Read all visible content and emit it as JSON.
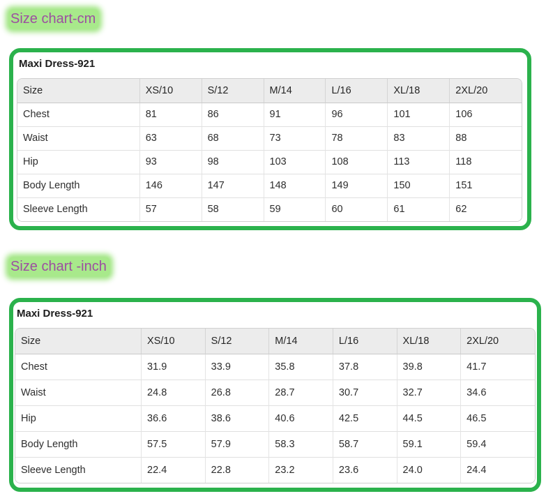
{
  "colors": {
    "accent_green": "#2bb24c",
    "highlight_green": "#a8e98b",
    "title_purple": "#9c4fa0",
    "header_gray": "#ececec"
  },
  "sections": [
    {
      "title": "Size chart-cm",
      "card_title": "Maxi Dress-921",
      "table": {
        "columns": [
          "Size",
          "XS/10",
          "S/12",
          "M/14",
          "L/16",
          "XL/18",
          "2XL/20"
        ],
        "rows": [
          {
            "label": "Chest",
            "values": [
              "81",
              "86",
              "91",
              "96",
              "101",
              "106"
            ]
          },
          {
            "label": "Waist",
            "values": [
              "63",
              "68",
              "73",
              "78",
              "83",
              "88"
            ]
          },
          {
            "label": "Hip",
            "values": [
              "93",
              "98",
              "103",
              "108",
              "113",
              "118"
            ]
          },
          {
            "label": "Body Length",
            "values": [
              "146",
              "147",
              "148",
              "149",
              "150",
              "151"
            ]
          },
          {
            "label": "Sleeve Length",
            "values": [
              "57",
              "58",
              "59",
              "60",
              "61",
              "62"
            ]
          }
        ]
      }
    },
    {
      "title": "Size chart -inch",
      "card_title": "Maxi Dress-921",
      "table": {
        "columns": [
          "Size",
          "XS/10",
          "S/12",
          "M/14",
          "L/16",
          "XL/18",
          "2XL/20"
        ],
        "rows": [
          {
            "label": "Chest",
            "values": [
              "31.9",
              "33.9",
              "35.8",
              "37.8",
              "39.8",
              "41.7"
            ]
          },
          {
            "label": "Waist",
            "values": [
              "24.8",
              "26.8",
              "28.7",
              "30.7",
              "32.7",
              "34.6"
            ]
          },
          {
            "label": "Hip",
            "values": [
              "36.6",
              "38.6",
              "40.6",
              "42.5",
              "44.5",
              "46.5"
            ]
          },
          {
            "label": "Body Length",
            "values": [
              "57.5",
              "57.9",
              "58.3",
              "58.7",
              "59.1",
              "59.4"
            ]
          },
          {
            "label": "Sleeve Length",
            "values": [
              "22.4",
              "22.8",
              "23.2",
              "23.6",
              "24.0",
              "24.4"
            ]
          }
        ]
      }
    }
  ]
}
